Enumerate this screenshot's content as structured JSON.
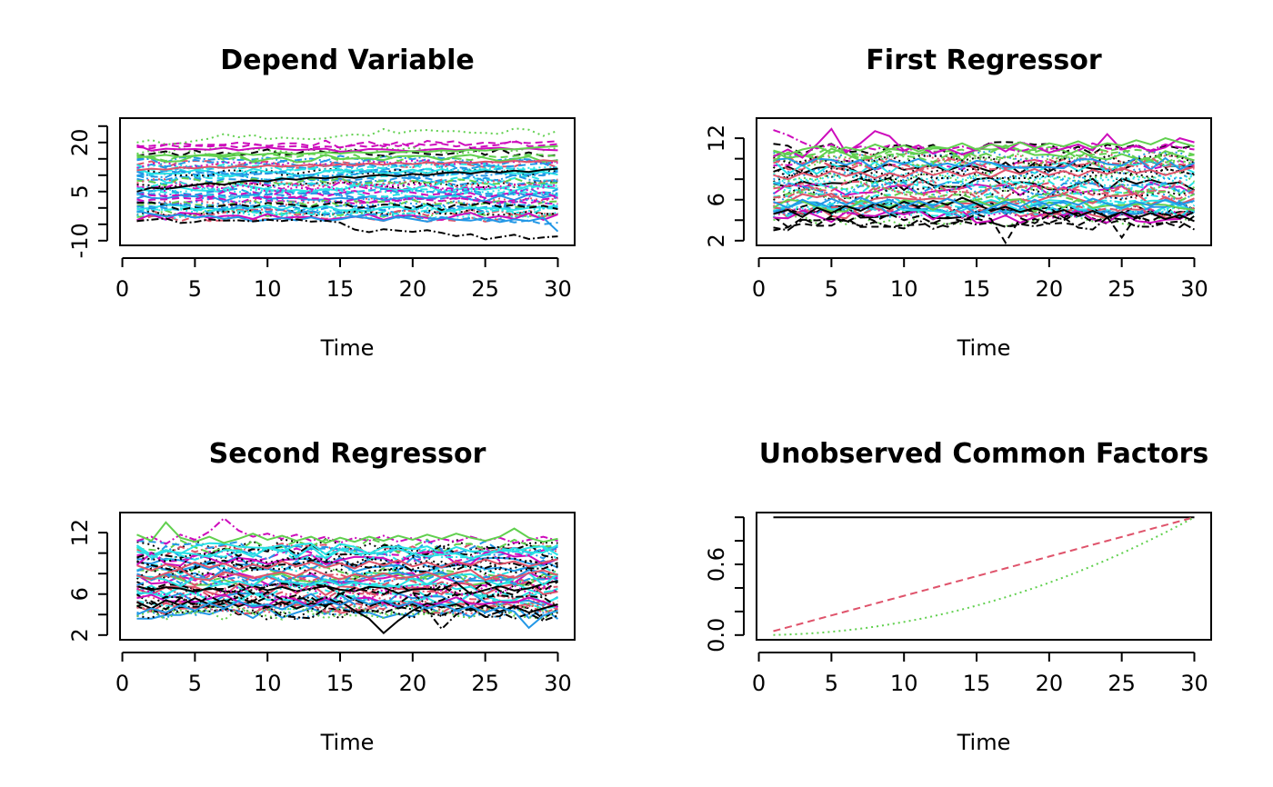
{
  "chart_data": [
    {
      "type": "line",
      "title": "Depend Variable",
      "xlabel": "Time",
      "ylabel": "",
      "xlim": [
        1,
        30
      ],
      "ylim": [
        -10,
        26
      ],
      "xticks": [
        0,
        5,
        10,
        15,
        20,
        25,
        30
      ],
      "yticks": [
        -10,
        -5,
        0,
        5,
        10,
        15,
        20,
        25
      ],
      "ytick_labels": [
        "-10",
        "",
        "",
        "5",
        "",
        "",
        "20",
        ""
      ],
      "grid": false,
      "legend": "none",
      "series_count": 50,
      "series_generator": {
        "seed": 11,
        "levels": [
          [
            -5,
            3
          ],
          [
            -2,
            5
          ],
          [
            0,
            7
          ],
          [
            2,
            10
          ],
          [
            4,
            12
          ],
          [
            6,
            14
          ],
          [
            8,
            17
          ],
          [
            10,
            20
          ]
        ],
        "noise": 1.2
      },
      "series": [
        {
          "color": "#CD0BBC",
          "dash": "",
          "values": [
            19.2,
            17.5,
            18.1,
            17.9,
            18.0,
            17.8,
            18.4,
            17.6,
            18.2,
            18.5,
            18.0,
            17.7,
            17.9,
            18.1,
            17.2,
            17.4,
            18.0,
            17.9,
            17.6,
            17.3,
            17.8,
            18.1,
            17.7,
            17.9,
            18.2,
            18.4,
            17.9,
            18.2,
            17.8,
            17.6
          ]
        },
        {
          "color": "#61D04F",
          "dash": "2,4",
          "values": [
            20.0,
            20.8,
            19.4,
            19.8,
            20.5,
            21.2,
            22.6,
            21.6,
            22.3,
            21.0,
            21.5,
            21.2,
            21.0,
            21.3,
            22.0,
            22.5,
            22.1,
            24.1,
            22.8,
            23.6,
            23.8,
            23.4,
            23.5,
            23.0,
            22.9,
            22.6,
            24.3,
            23.9,
            22.0,
            23.6
          ]
        },
        {
          "color": "#CD0BBC",
          "dash": "8,5",
          "values": [
            18.6,
            18.2,
            19.3,
            18.7,
            19.0,
            18.8,
            19.1,
            18.5,
            19.4,
            19.0,
            18.7,
            18.9,
            18.4,
            18.8,
            18.5,
            19.2,
            18.6,
            19.5,
            18.9,
            19.8,
            19.1,
            19.6,
            18.8,
            19.4,
            20.0,
            19.7,
            20.2,
            19.8,
            20.1,
            20.4
          ]
        },
        {
          "color": "#61D04F",
          "dash": "",
          "values": [
            15.4,
            15.8,
            16.2,
            15.6,
            16.0,
            16.4,
            16.1,
            16.8,
            16.2,
            16.5,
            16.9,
            16.4,
            16.7,
            17.0,
            16.6,
            17.1,
            16.8,
            17.2,
            17.0,
            17.4,
            17.1,
            17.6,
            17.3,
            17.8,
            17.5,
            18.0,
            17.9,
            18.3,
            18.6,
            18.9
          ]
        },
        {
          "color": "#2297E6",
          "dash": "",
          "values": [
            -1.0,
            -1.8,
            -2.6,
            -2.0,
            -3.0,
            -2.4,
            -3.3,
            -2.8,
            -4.1,
            -3.6,
            -3.1,
            -3.8,
            -2.9,
            -4.0,
            -3.5,
            -2.6,
            -3.2,
            -3.9,
            -2.7,
            -3.4,
            -4.2,
            -3.0,
            -3.6,
            -3.9,
            -3.1,
            -4.3,
            -3.5,
            -4.0,
            -3.0,
            -7.2
          ]
        },
        {
          "color": "#2297E6",
          "dash": "8,5",
          "values": [
            0.5,
            -0.2,
            0.8,
            1.2,
            0.6,
            0.0,
            -0.5,
            0.3,
            -0.8,
            -1.2,
            -0.5,
            -1.6,
            -0.9,
            -2.0,
            -1.4,
            -2.6,
            -1.9,
            -2.2,
            -3.0,
            -2.5,
            -3.4,
            -2.8,
            -3.6,
            -3.1,
            -4.0,
            -3.5,
            -4.4,
            -3.8,
            -5.0,
            -4.5
          ]
        },
        {
          "color": "#000000",
          "dash": "8,3,2,3",
          "values": [
            -4.0,
            -3.6,
            -3.2,
            -4.6,
            -4.3,
            -3.5,
            -3.9,
            -3.8,
            -4.1,
            -3.6,
            -4.0,
            -3.5,
            -4.2,
            -3.9,
            -4.5,
            -6.6,
            -7.4,
            -6.5,
            -6.9,
            -7.3,
            -6.8,
            -7.6,
            -8.6,
            -8.0,
            -9.6,
            -8.9,
            -8.2,
            -9.5,
            -9.0,
            -8.7
          ]
        },
        {
          "color": "#000000",
          "dash": "",
          "values": [
            5.0,
            6.2,
            5.8,
            6.4,
            7.0,
            7.6,
            7.1,
            8.0,
            8.4,
            8.1,
            9.0,
            8.6,
            9.3,
            9.0,
            9.6,
            9.2,
            9.8,
            10.1,
            9.7,
            10.4,
            10.0,
            10.6,
            11.0,
            10.5,
            11.2,
            10.8,
            11.4,
            11.0,
            11.7,
            12.0
          ]
        },
        {
          "color": "#DF536B",
          "dash": "",
          "values": [
            11.5,
            12.0,
            11.7,
            12.4,
            12.1,
            12.6,
            12.2,
            12.8,
            12.4,
            13.0,
            12.6,
            12.9,
            13.2,
            12.8,
            13.4,
            13.0,
            13.6,
            13.2,
            13.8,
            13.4,
            13.9,
            13.5,
            14.1,
            13.7,
            14.2,
            13.9,
            14.4,
            14.0,
            14.6,
            14.2
          ]
        },
        {
          "color": "#28E2E5",
          "dash": "2,4",
          "values": [
            6.0,
            5.2,
            5.8,
            4.9,
            5.4,
            6.1,
            5.5,
            4.8,
            5.6,
            5.0,
            5.7,
            4.6,
            5.3,
            5.9,
            5.1,
            4.7,
            5.5,
            5.0,
            4.4,
            5.2,
            4.9,
            5.6,
            4.5,
            5.1,
            4.8,
            5.4,
            4.2,
            5.0,
            4.6,
            4.3
          ]
        }
      ]
    },
    {
      "type": "line",
      "title": "First Regressor",
      "xlabel": "Time",
      "ylabel": "",
      "xlim": [
        1,
        30
      ],
      "ylim": [
        2,
        13.5
      ],
      "xticks": [
        0,
        5,
        10,
        15,
        20,
        25,
        30
      ],
      "yticks": [
        2,
        4,
        6,
        8,
        10,
        12
      ],
      "ytick_labels": [
        "2",
        "",
        "6",
        "",
        "",
        "12"
      ],
      "grid": false,
      "legend": "none",
      "series_count": 50,
      "series_generator": {
        "seed": 23,
        "levels": [
          [
            3.5,
            5.5
          ],
          [
            4.5,
            6.5
          ],
          [
            5.5,
            7.5
          ],
          [
            7,
            8.5
          ],
          [
            8.5,
            10
          ],
          [
            9.5,
            11
          ]
        ],
        "noise": 0.65
      },
      "series": [
        {
          "color": "#CD0BBC",
          "dash": "8,3,2,3",
          "values": [
            12.8,
            12.3,
            11.6,
            11.0,
            11.4,
            10.8,
            11.2,
            10.9,
            11.3,
            10.7,
            11.1,
            10.6,
            10.9,
            11.2,
            10.8,
            11.4,
            11.0,
            10.7,
            11.1,
            10.9,
            11.3,
            10.8,
            11.5,
            11.0,
            10.9,
            11.2,
            10.8,
            11.4,
            11.1,
            10.9
          ]
        },
        {
          "color": "#CD0BBC",
          "dash": "",
          "values": [
            10.2,
            10.9,
            10.1,
            11.4,
            12.9,
            10.6,
            11.5,
            12.7,
            12.2,
            10.8,
            11.3,
            10.5,
            11.0,
            10.4,
            10.9,
            11.5,
            10.7,
            11.6,
            11.2,
            10.6,
            11.0,
            11.4,
            10.8,
            12.4,
            10.9,
            11.3,
            10.7,
            11.1,
            12.0,
            11.6
          ]
        },
        {
          "color": "#000000",
          "dash": "8,5",
          "values": [
            3.0,
            3.3,
            4.2,
            3.5,
            4.4,
            3.8,
            4.5,
            3.9,
            4.6,
            4.0,
            4.4,
            3.7,
            4.3,
            3.9,
            4.6,
            4.1,
            1.8,
            4.2,
            3.7,
            4.5,
            4.0,
            4.7,
            3.8,
            4.3,
            2.3,
            4.4,
            3.9,
            4.6,
            4.2,
            4.8
          ]
        },
        {
          "color": "#000000",
          "dash": "",
          "values": [
            4.6,
            5.0,
            4.3,
            5.2,
            4.7,
            5.4,
            4.9,
            5.6,
            5.1,
            5.8,
            5.3,
            5.9,
            5.5,
            6.2,
            5.6,
            4.9,
            5.3,
            4.8,
            5.2,
            4.6,
            5.0,
            4.4,
            4.9,
            4.3,
            4.8,
            4.2,
            4.7,
            4.1,
            4.5,
            3.9
          ]
        },
        {
          "color": "#61D04F",
          "dash": "",
          "values": [
            10.8,
            10.4,
            10.9,
            11.2,
            10.6,
            11.1,
            10.8,
            11.4,
            10.9,
            11.3,
            10.7,
            11.2,
            11.0,
            11.5,
            10.9,
            11.4,
            11.1,
            11.6,
            11.0,
            11.5,
            11.2,
            11.7,
            11.1,
            11.5,
            11.3,
            11.8,
            11.4,
            12.0,
            11.6,
            11.2
          ]
        },
        {
          "color": "#2297E6",
          "dash": "",
          "values": [
            5.8,
            5.2,
            6.0,
            5.4,
            6.1,
            5.5,
            6.2,
            5.6,
            6.0,
            5.3,
            5.9,
            5.4,
            6.1,
            5.5,
            4.6,
            5.2,
            5.8,
            5.3,
            6.0,
            5.4,
            5.9,
            5.5,
            6.1,
            5.6,
            5.2,
            5.8,
            5.4,
            6.0,
            5.5,
            5.9
          ]
        },
        {
          "color": "#DF536B",
          "dash": "",
          "values": [
            8.4,
            8.0,
            8.6,
            8.2,
            8.8,
            8.3,
            8.7,
            8.1,
            8.6,
            8.2,
            8.9,
            8.4,
            8.8,
            8.3,
            8.7,
            8.2,
            8.9,
            8.5,
            9.0,
            8.4,
            8.8,
            8.3,
            8.9,
            8.5,
            9.1,
            8.6,
            8.9,
            8.4,
            8.8,
            9.2
          ]
        }
      ]
    },
    {
      "type": "line",
      "title": "Second Regressor",
      "xlabel": "Time",
      "ylabel": "",
      "xlim": [
        1,
        30
      ],
      "ylim": [
        2,
        13.5
      ],
      "xticks": [
        0,
        5,
        10,
        15,
        20,
        25,
        30
      ],
      "yticks": [
        2,
        4,
        6,
        8,
        10,
        12
      ],
      "ytick_labels": [
        "2",
        "",
        "6",
        "",
        "",
        "12"
      ],
      "grid": false,
      "legend": "none",
      "series_count": 50,
      "series_generator": {
        "seed": 37,
        "levels": [
          [
            3.8,
            5.6
          ],
          [
            4.5,
            6.6
          ],
          [
            5.8,
            7.6
          ],
          [
            7.2,
            8.6
          ],
          [
            8.6,
            10.2
          ],
          [
            9.6,
            11.2
          ]
        ],
        "noise": 0.7
      },
      "series": [
        {
          "color": "#CD0BBC",
          "dash": "8,3,2,3",
          "values": [
            11.2,
            11.6,
            10.9,
            11.8,
            11.3,
            12.1,
            13.4,
            12.2,
            11.6,
            11.9,
            11.4,
            11.8,
            11.2,
            11.6,
            11.0,
            11.5,
            11.2,
            11.7,
            11.1,
            11.5,
            11.0,
            11.4,
            11.1,
            11.6,
            11.2,
            11.5,
            11.0,
            11.3,
            11.6,
            11.2
          ]
        },
        {
          "color": "#61D04F",
          "dash": "",
          "values": [
            11.8,
            11.2,
            13.0,
            11.5,
            11.1,
            11.6,
            11.0,
            11.4,
            11.9,
            11.3,
            11.7,
            11.2,
            11.6,
            11.0,
            11.5,
            11.1,
            11.6,
            11.2,
            11.7,
            11.3,
            11.8,
            11.4,
            11.9,
            11.5,
            11.2,
            11.6,
            12.4,
            11.5,
            11.1,
            11.4
          ]
        },
        {
          "color": "#000000",
          "dash": "",
          "values": [
            5.2,
            4.6,
            5.4,
            4.9,
            5.6,
            5.0,
            5.4,
            4.8,
            5.3,
            4.7,
            5.2,
            4.6,
            5.1,
            4.9,
            5.3,
            4.4,
            3.6,
            2.2,
            3.4,
            4.4,
            5.1,
            4.7,
            5.0,
            4.4,
            4.9,
            4.3,
            4.8,
            4.2,
            4.6,
            5.0
          ]
        },
        {
          "color": "#000000",
          "dash": "8,3,2,3",
          "values": [
            4.8,
            5.3,
            4.5,
            5.6,
            4.9,
            5.8,
            5.1,
            6.0,
            5.3,
            6.2,
            5.5,
            5.9,
            5.2,
            5.7,
            5.0,
            5.5,
            4.8,
            5.3,
            4.6,
            5.0,
            4.4,
            2.6,
            4.0,
            4.6,
            3.8,
            4.3,
            3.6,
            4.1,
            3.4,
            3.9
          ]
        },
        {
          "color": "#2297E6",
          "dash": "",
          "values": [
            4.0,
            4.6,
            4.2,
            4.9,
            4.4,
            5.1,
            4.6,
            5.3,
            4.8,
            5.0,
            4.5,
            5.2,
            4.7,
            5.4,
            4.9,
            5.6,
            5.0,
            5.4,
            4.8,
            5.2,
            4.6,
            5.0,
            4.4,
            4.8,
            4.2,
            4.7,
            4.3,
            2.7,
            3.9,
            4.4
          ]
        },
        {
          "color": "#DF536B",
          "dash": "",
          "values": [
            8.8,
            8.3,
            8.9,
            8.5,
            9.1,
            8.6,
            9.0,
            8.4,
            8.9,
            8.5,
            9.2,
            8.7,
            9.1,
            8.6,
            9.0,
            8.5,
            9.2,
            8.8,
            9.3,
            8.7,
            9.1,
            8.6,
            9.2,
            8.8,
            9.4,
            8.9,
            9.2,
            8.7,
            9.1,
            9.4
          ]
        }
      ]
    },
    {
      "type": "line",
      "title": "Unobserved Common Factors",
      "xlabel": "Time",
      "ylabel": "",
      "xlim": [
        1,
        30
      ],
      "ylim": [
        0,
        1
      ],
      "xticks": [
        0,
        5,
        10,
        15,
        20,
        25,
        30
      ],
      "yticks": [
        0.0,
        0.2,
        0.4,
        0.6,
        0.8,
        1.0
      ],
      "ytick_labels": [
        "0.0",
        "",
        "",
        "0.6",
        "",
        ""
      ],
      "grid": false,
      "legend": "none",
      "series": [
        {
          "color": "#000000",
          "dash": "",
          "formula": "constant",
          "values": [
            1,
            1
          ]
        },
        {
          "color": "#DF536B",
          "dash": "8,5",
          "formula": "t/30"
        },
        {
          "color": "#61D04F",
          "dash": "2,4",
          "formula": "(t/30)^2"
        }
      ]
    }
  ]
}
